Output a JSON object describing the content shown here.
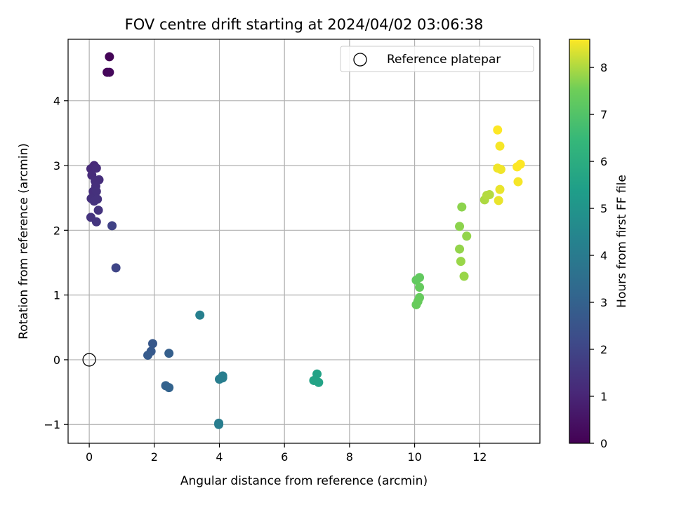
{
  "chart_data": {
    "type": "scatter",
    "title": "FOV centre drift starting at 2024/04/02 03:06:38",
    "xlabel": "Angular distance from reference (arcmin)",
    "ylabel": "Rotation from reference (arcmin)",
    "xlim": [
      -0.65,
      13.85
    ],
    "ylim": [
      -1.29,
      4.95
    ],
    "xticks": [
      0,
      2,
      4,
      6,
      8,
      10,
      12
    ],
    "xtick_labels": [
      "0",
      "2",
      "4",
      "6",
      "8",
      "10",
      "12"
    ],
    "yticks": [
      -1,
      0,
      1,
      2,
      3,
      4
    ],
    "ytick_labels": [
      "−1",
      "0",
      "1",
      "2",
      "3",
      "4"
    ],
    "grid": true,
    "colormap": "viridis",
    "colorbar": {
      "label": "Hours from first FF file",
      "range": [
        0,
        8.6
      ],
      "ticks": [
        0,
        1,
        2,
        3,
        4,
        5,
        6,
        7,
        8
      ],
      "tick_labels": [
        "0",
        "1",
        "2",
        "3",
        "4",
        "5",
        "6",
        "7",
        "8"
      ]
    },
    "legend": {
      "position": "top-right",
      "entries": [
        {
          "label": "Reference platepar",
          "marker": "hollow-circle"
        }
      ]
    },
    "reference_point": {
      "x": 0,
      "y": 0
    },
    "points": [
      {
        "x": 0.62,
        "y": 4.68,
        "h": 0.1
      },
      {
        "x": 0.55,
        "y": 4.44,
        "h": 0.15
      },
      {
        "x": 0.62,
        "y": 4.44,
        "h": 0.2
      },
      {
        "x": 0.15,
        "y": 3.0,
        "h": 1.1
      },
      {
        "x": 0.05,
        "y": 2.95,
        "h": 1.15
      },
      {
        "x": 0.22,
        "y": 2.96,
        "h": 1.2
      },
      {
        "x": 0.08,
        "y": 2.85,
        "h": 1.2
      },
      {
        "x": 0.3,
        "y": 2.78,
        "h": 1.25
      },
      {
        "x": 0.18,
        "y": 2.76,
        "h": 1.25
      },
      {
        "x": 0.2,
        "y": 2.68,
        "h": 1.3
      },
      {
        "x": 0.12,
        "y": 2.6,
        "h": 1.3
      },
      {
        "x": 0.22,
        "y": 2.6,
        "h": 1.35
      },
      {
        "x": 0.06,
        "y": 2.49,
        "h": 1.35
      },
      {
        "x": 0.15,
        "y": 2.45,
        "h": 1.4
      },
      {
        "x": 0.25,
        "y": 2.48,
        "h": 1.4
      },
      {
        "x": 0.28,
        "y": 2.31,
        "h": 1.45
      },
      {
        "x": 0.05,
        "y": 2.2,
        "h": 1.45
      },
      {
        "x": 0.22,
        "y": 2.13,
        "h": 1.5
      },
      {
        "x": 0.7,
        "y": 2.07,
        "h": 1.9
      },
      {
        "x": 0.82,
        "y": 1.42,
        "h": 2.0
      },
      {
        "x": 1.95,
        "y": 0.25,
        "h": 2.65
      },
      {
        "x": 1.9,
        "y": 0.13,
        "h": 2.7
      },
      {
        "x": 1.8,
        "y": 0.07,
        "h": 2.75
      },
      {
        "x": 2.45,
        "y": 0.1,
        "h": 2.9
      },
      {
        "x": 2.35,
        "y": -0.4,
        "h": 3.0
      },
      {
        "x": 2.45,
        "y": -0.43,
        "h": 3.05
      },
      {
        "x": 3.4,
        "y": 0.69,
        "h": 4.2
      },
      {
        "x": 4.1,
        "y": -0.25,
        "h": 4.1
      },
      {
        "x": 4.0,
        "y": -0.3,
        "h": 4.1
      },
      {
        "x": 4.1,
        "y": -0.28,
        "h": 4.15
      },
      {
        "x": 3.98,
        "y": -0.98,
        "h": 4.05
      },
      {
        "x": 3.98,
        "y": -1.0,
        "h": 4.1
      },
      {
        "x": 7.0,
        "y": -0.22,
        "h": 5.55
      },
      {
        "x": 6.9,
        "y": -0.32,
        "h": 5.6
      },
      {
        "x": 7.05,
        "y": -0.35,
        "h": 5.6
      },
      {
        "x": 10.15,
        "y": 1.27,
        "h": 7.3
      },
      {
        "x": 10.05,
        "y": 1.23,
        "h": 7.3
      },
      {
        "x": 10.15,
        "y": 1.12,
        "h": 7.35
      },
      {
        "x": 10.15,
        "y": 0.96,
        "h": 7.35
      },
      {
        "x": 10.1,
        "y": 0.9,
        "h": 7.4
      },
      {
        "x": 10.05,
        "y": 0.85,
        "h": 7.4
      },
      {
        "x": 11.45,
        "y": 2.36,
        "h": 7.75
      },
      {
        "x": 11.38,
        "y": 2.06,
        "h": 7.75
      },
      {
        "x": 11.6,
        "y": 1.91,
        "h": 7.8
      },
      {
        "x": 11.38,
        "y": 1.71,
        "h": 7.8
      },
      {
        "x": 11.42,
        "y": 1.52,
        "h": 7.85
      },
      {
        "x": 11.52,
        "y": 1.29,
        "h": 7.85
      },
      {
        "x": 12.15,
        "y": 2.47,
        "h": 8.0
      },
      {
        "x": 12.22,
        "y": 2.54,
        "h": 8.05
      },
      {
        "x": 12.3,
        "y": 2.55,
        "h": 8.05
      },
      {
        "x": 12.55,
        "y": 3.55,
        "h": 8.6
      },
      {
        "x": 12.62,
        "y": 3.3,
        "h": 8.55
      },
      {
        "x": 12.55,
        "y": 2.96,
        "h": 8.5
      },
      {
        "x": 12.65,
        "y": 2.94,
        "h": 8.5
      },
      {
        "x": 12.62,
        "y": 2.63,
        "h": 8.45
      },
      {
        "x": 12.58,
        "y": 2.46,
        "h": 8.45
      },
      {
        "x": 13.15,
        "y": 2.98,
        "h": 8.6
      },
      {
        "x": 13.25,
        "y": 3.02,
        "h": 8.6
      },
      {
        "x": 13.18,
        "y": 2.75,
        "h": 8.55
      }
    ]
  }
}
